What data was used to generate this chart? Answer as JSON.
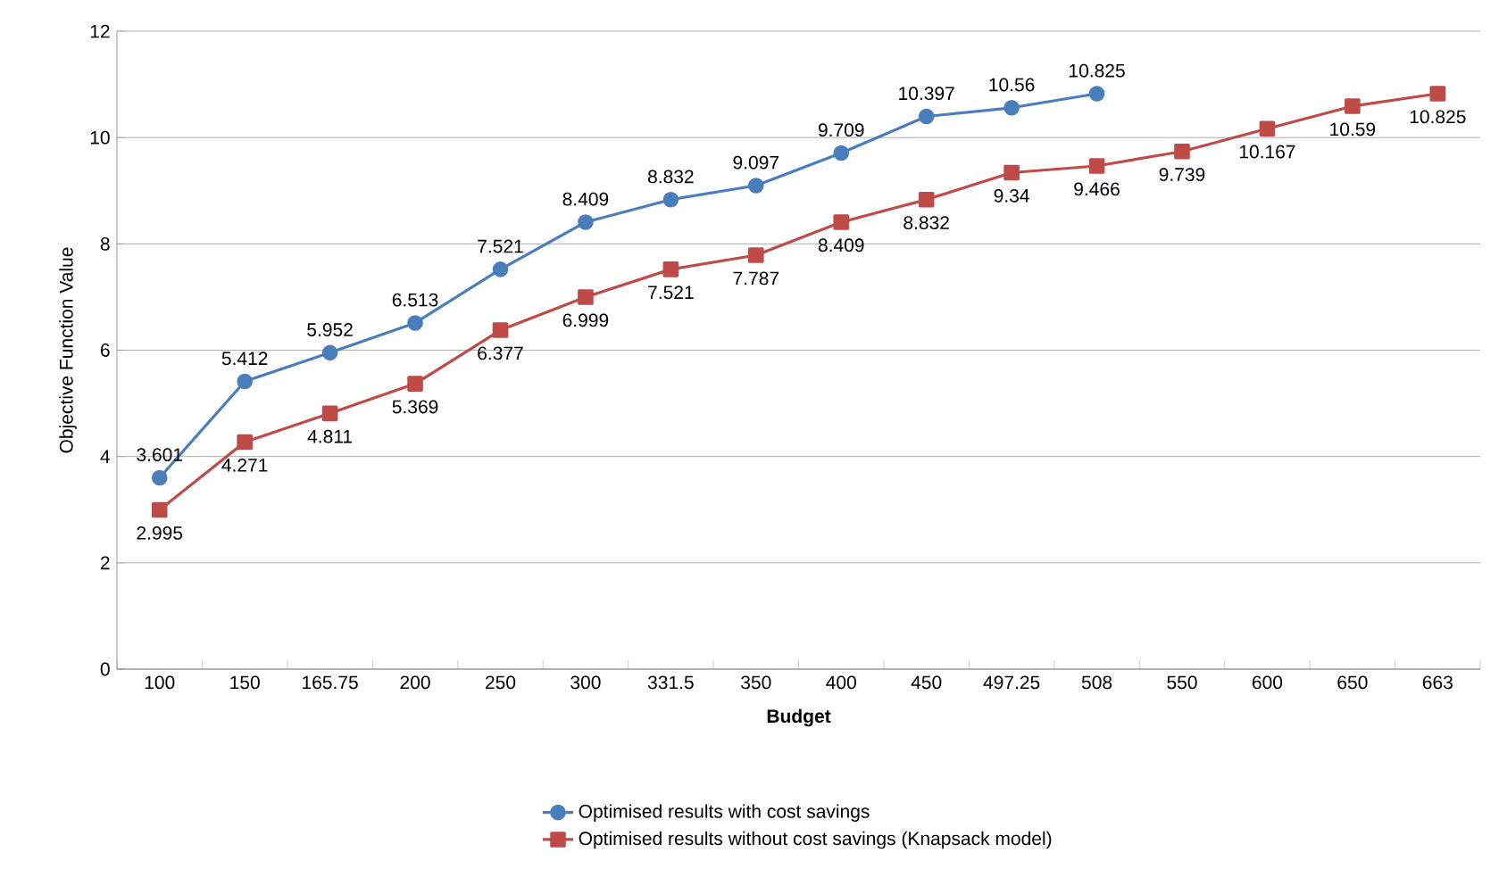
{
  "chart_data": {
    "type": "line",
    "xlabel": "Budget",
    "ylabel": "Objective Function Value",
    "categories": [
      "100",
      "150",
      "165.75",
      "200",
      "250",
      "300",
      "331.5",
      "350",
      "400",
      "450",
      "497.25",
      "508",
      "550",
      "600",
      "650",
      "663"
    ],
    "series": [
      {
        "name": "Optimised results with cost savings",
        "color": "#4a7ebb",
        "marker": "circle",
        "values": [
          3.601,
          5.412,
          5.952,
          6.513,
          7.521,
          8.409,
          8.832,
          9.097,
          9.709,
          10.397,
          10.56,
          10.825,
          null,
          null,
          null,
          null
        ]
      },
      {
        "name": "Optimised results without cost savings (Knapsack model)",
        "color": "#be4b48",
        "marker": "square",
        "values": [
          2.995,
          4.271,
          4.811,
          5.369,
          6.377,
          6.999,
          7.521,
          7.787,
          8.409,
          8.832,
          9.34,
          9.466,
          9.739,
          10.167,
          10.59,
          10.825
        ]
      }
    ],
    "ylim": [
      0,
      12
    ],
    "yticks": [
      0,
      2,
      4,
      6,
      8,
      10,
      12
    ],
    "grid": "y",
    "legend": "bottom",
    "data_labels": true,
    "line_style": "solid"
  }
}
